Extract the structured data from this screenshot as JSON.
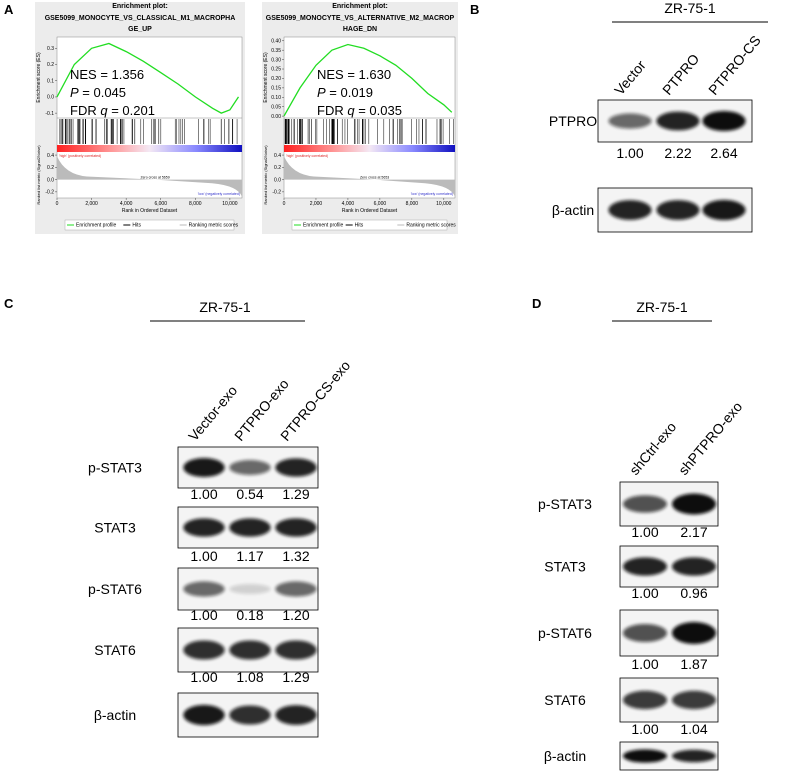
{
  "panel_labels": [
    "A",
    "B",
    "C",
    "D"
  ],
  "gsea": [
    {
      "title": [
        "Enrichment plot:",
        "GSE5099_MONOCYTE_VS_CLASSICAL_M1_MACROPHA",
        "GE_UP"
      ],
      "nes": "NES = 1.356",
      "p_label": "P",
      "p_value": " = 0.045",
      "fdr_label": "FDR ",
      "q_label": "q",
      "fdr_value": " = 0.201",
      "ylabel": "Enrichment score (ES)",
      "ylabel2": "Ranked list metric (Signal2Noise)",
      "xlabel": "Rank in Ordered Dataset",
      "high_label": "'high' (positively correlated)",
      "low_label": "'low' (negatively correlated)",
      "zero_cross": "Zero cross at 5659",
      "legend": [
        "Enrichment profile",
        "Hits",
        "Ranking metric scores"
      ],
      "chart": {
        "type": "line",
        "color": "#22dd22",
        "x": [
          0,
          1000,
          2000,
          3000,
          4000,
          5000,
          6000,
          7000,
          8000,
          9000,
          9500,
          10000,
          10500
        ],
        "values": [
          0,
          0.2,
          0.3,
          0.33,
          0.28,
          0.22,
          0.15,
          0.08,
          0.0,
          -0.07,
          -0.1,
          -0.08,
          0.0
        ],
        "xlim": [
          0,
          10700
        ],
        "xticks": [
          0,
          {
            "value": 2000,
            "label": "2,000"
          },
          {
            "value": 4000,
            "label": "4,000"
          },
          {
            "value": 6000,
            "label": "6,000"
          },
          {
            "value": 8000,
            "label": "8,000"
          },
          {
            "value": 10000,
            "label": "10,000"
          }
        ],
        "ylim": [
          -0.13,
          0.37
        ],
        "yticks": [
          -0.1,
          {
            "value": 0,
            "label": "0.0"
          },
          0.1,
          0.2,
          0.3
        ],
        "y2lim": [
          -0.3,
          0.45
        ],
        "y2ticks": [
          0.4,
          0.2,
          {
            "value": 0,
            "label": "0.0"
          },
          -0.2
        ]
      }
    },
    {
      "title": [
        "Enrichment plot:",
        "GSE5099_MONOCYTE_VS_ALTERNATIVE_M2_MACROP",
        "HAGE_DN"
      ],
      "nes": "NES = 1.630",
      "p_label": "P",
      "p_value": " = 0.019",
      "fdr_label": "FDR ",
      "q_label": "q",
      "fdr_value": " = 0.035",
      "ylabel": "Enrichment score (ES)",
      "ylabel2": "Ranked list metric (Signal2Noise)",
      "xlabel": "Rank in Ordered Dataset",
      "high_label": "'high' (positively correlated)",
      "low_label": "'low' (negatively correlated)",
      "zero_cross": "Zero cross at 5653",
      "legend": [
        "Enrichment profile",
        "Hits",
        "Ranking metric scores"
      ],
      "chart": {
        "type": "line",
        "color": "#22dd22",
        "x": [
          0,
          1000,
          2000,
          3000,
          4000,
          5000,
          6000,
          7000,
          8000,
          9000,
          10000,
          10500
        ],
        "values": [
          0,
          0.15,
          0.27,
          0.35,
          0.38,
          0.36,
          0.32,
          0.27,
          0.2,
          0.12,
          0.06,
          0.02
        ],
        "xlim": [
          0,
          10700
        ],
        "xticks": [
          0,
          {
            "value": 2000,
            "label": "2,000"
          },
          {
            "value": 4000,
            "label": "4,000"
          },
          {
            "value": 6000,
            "label": "6,000"
          },
          {
            "value": 8000,
            "label": "8,000"
          },
          {
            "value": 10000,
            "label": "10,000"
          }
        ],
        "ylim": [
          -0.01,
          0.42
        ],
        "yticks": [
          {
            "value": 0,
            "label": "0.00"
          },
          {
            "value": 0.05,
            "label": "0.05"
          },
          {
            "value": 0.1,
            "label": "0.10"
          },
          {
            "value": 0.15,
            "label": "0.15"
          },
          {
            "value": 0.2,
            "label": "0.20"
          },
          {
            "value": 0.25,
            "label": "0.25"
          },
          {
            "value": 0.3,
            "label": "0.30"
          },
          {
            "value": 0.35,
            "label": "0.35"
          },
          {
            "value": 0.4,
            "label": "0.40"
          }
        ],
        "y2lim": [
          -0.3,
          0.45
        ],
        "y2ticks": [
          0.4,
          0.2,
          {
            "value": 0,
            "label": "0.0"
          },
          -0.2
        ]
      }
    }
  ],
  "blots": [
    {
      "cell_line": "ZR-75-1",
      "lanes": [
        "Vector",
        "PTPRO",
        "PTPRO-CS"
      ],
      "rows": [
        {
          "label": "PTPRO",
          "quant": [
            "1.00",
            "2.22",
            "2.64"
          ]
        },
        {
          "label": "β-actin"
        }
      ]
    },
    {
      "cell_line": "ZR-75-1",
      "lanes": [
        "Vector-exo",
        "PTPRO-exo",
        "PTPRO-CS-exo"
      ],
      "rows": [
        {
          "label": "p-STAT3",
          "quant": [
            "1.00",
            "0.54",
            "1.29"
          ]
        },
        {
          "label": "STAT3",
          "quant": [
            "1.00",
            "1.17",
            "1.32"
          ]
        },
        {
          "label": "p-STAT6",
          "quant": [
            "1.00",
            "0.18",
            "1.20"
          ]
        },
        {
          "label": "STAT6",
          "quant": [
            "1.00",
            "1.08",
            "1.29"
          ]
        },
        {
          "label": "β-actin"
        }
      ]
    },
    {
      "cell_line": "ZR-75-1",
      "lanes": [
        "shCtrl-exo",
        "shPTPRO-exo"
      ],
      "rows": [
        {
          "label": "p-STAT3",
          "quant": [
            "1.00",
            "2.17"
          ]
        },
        {
          "label": "STAT3",
          "quant": [
            "1.00",
            "0.96"
          ]
        },
        {
          "label": "p-STAT6",
          "quant": [
            "1.00",
            "1.87"
          ]
        },
        {
          "label": "STAT6",
          "quant": [
            "1.00",
            "1.04"
          ]
        },
        {
          "label": "β-actin"
        }
      ]
    }
  ]
}
